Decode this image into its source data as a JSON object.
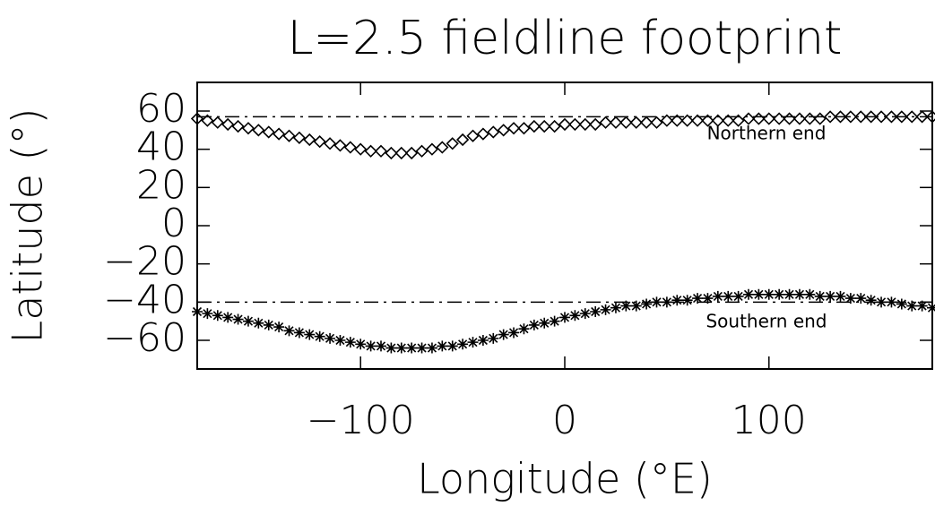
{
  "chart_data": {
    "type": "scatter",
    "title": "L=2.5 fieldline footprint",
    "x_label": "Longitude (°E)",
    "y_label": "Latitude (°)",
    "xlim": [
      -180,
      180
    ],
    "ylim": [
      -75,
      75
    ],
    "xticks": [
      {
        "value": -100,
        "label": "−100"
      },
      0,
      100
    ],
    "yticks": [
      {
        "value": -60,
        "label": "−60"
      },
      {
        "value": -40,
        "label": "−40"
      },
      {
        "value": -20,
        "label": "−20"
      },
      0,
      20,
      40,
      60
    ],
    "hlines": [
      57,
      -40
    ],
    "x": [
      -180,
      -175,
      -170,
      -165,
      -160,
      -155,
      -150,
      -145,
      -140,
      -135,
      -130,
      -125,
      -120,
      -115,
      -110,
      -105,
      -100,
      -95,
      -90,
      -85,
      -80,
      -75,
      -70,
      -65,
      -60,
      -55,
      -50,
      -45,
      -40,
      -35,
      -30,
      -25,
      -20,
      -15,
      -10,
      -5,
      0,
      5,
      10,
      15,
      20,
      25,
      30,
      35,
      40,
      45,
      50,
      55,
      60,
      65,
      70,
      75,
      80,
      85,
      90,
      95,
      100,
      105,
      110,
      115,
      120,
      125,
      130,
      135,
      140,
      145,
      150,
      155,
      160,
      165,
      170,
      175,
      180
    ],
    "series": [
      {
        "name": "Northern end",
        "color": "#000000",
        "marker": "diamond",
        "values": [
          56,
          55,
          54,
          53,
          52,
          51,
          50,
          49,
          48,
          47,
          46,
          45,
          44,
          43,
          42,
          41,
          40,
          39,
          39,
          38,
          38,
          38,
          39,
          40,
          41,
          43,
          45,
          47,
          48,
          49,
          50,
          51,
          51,
          52,
          52,
          52,
          53,
          53,
          53,
          53,
          54,
          54,
          54,
          54,
          54,
          54,
          55,
          55,
          55,
          55,
          55,
          55,
          55,
          55,
          56,
          56,
          56,
          56,
          56,
          56,
          56,
          56,
          57,
          57,
          57,
          57,
          57,
          57,
          57,
          57,
          57,
          57,
          57
        ]
      },
      {
        "name": "Southern end",
        "color": "#000000",
        "marker": "asterisk",
        "values": [
          -45,
          -46,
          -47,
          -48,
          -49,
          -50,
          -51,
          -52,
          -53,
          -55,
          -56,
          -57,
          -58,
          -59,
          -60,
          -61,
          -62,
          -63,
          -63,
          -64,
          -64,
          -64,
          -64,
          -64,
          -63,
          -63,
          -62,
          -61,
          -60,
          -59,
          -57,
          -56,
          -54,
          -52,
          -51,
          -50,
          -48,
          -47,
          -46,
          -45,
          -44,
          -43,
          -42,
          -42,
          -41,
          -40,
          -40,
          -39,
          -39,
          -38,
          -38,
          -37,
          -37,
          -37,
          -36,
          -36,
          -36,
          -36,
          -36,
          -36,
          -36,
          -37,
          -37,
          -37,
          -38,
          -38,
          -39,
          -40,
          -40,
          -41,
          -42,
          -42,
          -43
        ]
      }
    ]
  }
}
